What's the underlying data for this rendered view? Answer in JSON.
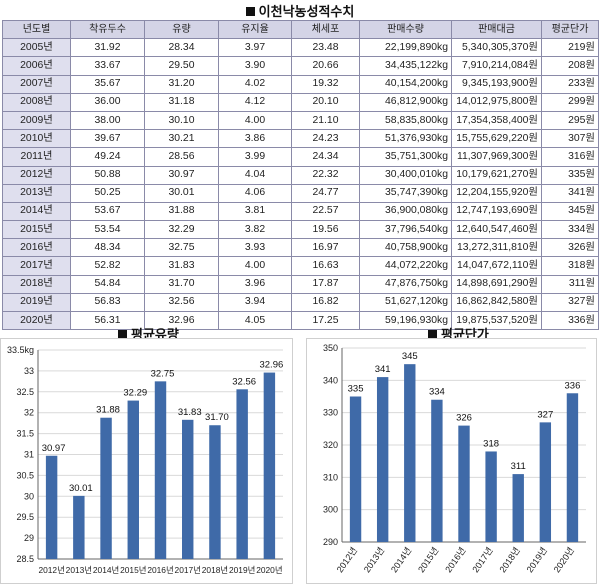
{
  "table": {
    "title": "이천낙농성적수치",
    "headers": [
      "년도별",
      "착유두수",
      "유량",
      "유지율",
      "체세포",
      "판매수량",
      "판매대금",
      "평균단가"
    ],
    "rows": [
      [
        "2005년",
        "31.92",
        "28.34",
        "3.97",
        "23.48",
        "22,199,890kg",
        "5,340,305,370원",
        "219원"
      ],
      [
        "2006년",
        "33.67",
        "29.50",
        "3.90",
        "20.66",
        "34,435,122kg",
        "7,910,214,084원",
        "208원"
      ],
      [
        "2007년",
        "35.67",
        "31.20",
        "4.02",
        "19.32",
        "40,154,200kg",
        "9,345,193,900원",
        "233원"
      ],
      [
        "2008년",
        "36.00",
        "31.18",
        "4.12",
        "20.10",
        "46,812,900kg",
        "14,012,975,800원",
        "299원"
      ],
      [
        "2009년",
        "38.00",
        "30.10",
        "4.00",
        "21.10",
        "58,835,800kg",
        "17,354,358,400원",
        "295원"
      ],
      [
        "2010년",
        "39.67",
        "30.21",
        "3.86",
        "24.23",
        "51,376,930kg",
        "15,755,629,220원",
        "307원"
      ],
      [
        "2011년",
        "49.24",
        "28.56",
        "3.99",
        "24.34",
        "35,751,300kg",
        "11,307,969,300원",
        "316원"
      ],
      [
        "2012년",
        "50.88",
        "30.97",
        "4.04",
        "22.32",
        "30,400,010kg",
        "10,179,621,270원",
        "335원"
      ],
      [
        "2013년",
        "50.25",
        "30.01",
        "4.06",
        "24.77",
        "35,747,390kg",
        "12,204,155,920원",
        "341원"
      ],
      [
        "2014년",
        "53.67",
        "31.88",
        "3.81",
        "22.57",
        "36,900,080kg",
        "12,747,193,690원",
        "345원"
      ],
      [
        "2015년",
        "53.54",
        "32.29",
        "3.82",
        "19.56",
        "37,796,540kg",
        "12,640,547,460원",
        "334원"
      ],
      [
        "2016년",
        "48.34",
        "32.75",
        "3.93",
        "16.97",
        "40,758,900kg",
        "13,272,311,810원",
        "326원"
      ],
      [
        "2017년",
        "52.82",
        "31.83",
        "4.00",
        "16.63",
        "44,072,220kg",
        "14,047,672,110원",
        "318원"
      ],
      [
        "2018년",
        "54.84",
        "31.70",
        "3.96",
        "17.87",
        "47,876,750kg",
        "14,898,691,290원",
        "311원"
      ],
      [
        "2019년",
        "56.83",
        "32.56",
        "3.94",
        "16.82",
        "51,627,120kg",
        "16,862,842,580원",
        "327원"
      ],
      [
        "2020년",
        "56.31",
        "32.96",
        "4.05",
        "17.25",
        "59,196,930kg",
        "19,875,537,520원",
        "336원"
      ]
    ]
  },
  "chart_data": [
    {
      "type": "bar",
      "title": "평균유량",
      "categories": [
        "2012년",
        "2013년",
        "2014년",
        "2015년",
        "2016년",
        "2017년",
        "2018년",
        "2019년",
        "2020년"
      ],
      "values": [
        30.97,
        30.01,
        31.88,
        32.29,
        32.75,
        31.83,
        31.7,
        32.56,
        32.96
      ],
      "value_labels": [
        "30.97",
        "30.01",
        "31.88",
        "32.29",
        "32.75",
        "31.83",
        "31.70",
        "32.56",
        "32.96"
      ],
      "yticks": [
        "28.5",
        "29",
        "29.5",
        "30",
        "30.5",
        "31",
        "31.5",
        "32",
        "32.5",
        "33",
        "33.5kg"
      ],
      "ylim": [
        28.5,
        33.5
      ],
      "ystep": 0.5,
      "xlabel": "",
      "ylabel": "",
      "grid": true,
      "bar_color": "#3f6aa8"
    },
    {
      "type": "bar",
      "title": "평균단가",
      "categories": [
        "2012년",
        "2013년",
        "2014년",
        "2015년",
        "2016년",
        "2017년",
        "2018년",
        "2019년",
        "2020년"
      ],
      "values": [
        335,
        341,
        345,
        334,
        326,
        318,
        311,
        327,
        336
      ],
      "value_labels": [
        "335",
        "341",
        "345",
        "334",
        "326",
        "318",
        "311",
        "327",
        "336"
      ],
      "yticks": [
        "290",
        "300",
        "310",
        "320",
        "330",
        "340",
        "350"
      ],
      "ylim": [
        290,
        350
      ],
      "ystep": 10,
      "xlabel": "",
      "ylabel": "",
      "grid": true,
      "bar_color": "#3f6aa8"
    }
  ]
}
